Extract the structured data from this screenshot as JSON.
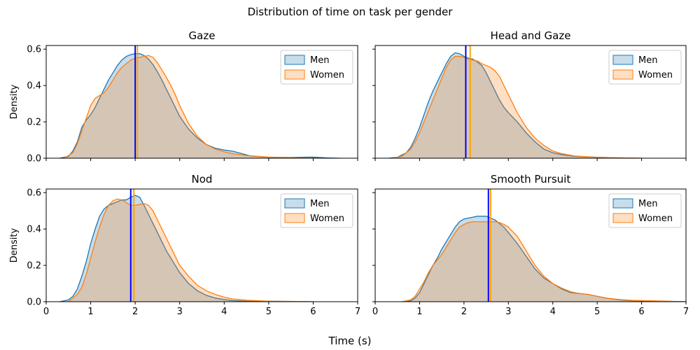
{
  "chart_data": {
    "type": "area",
    "title": "Distribution of time on task per gender",
    "xlabel": "Time (s)",
    "ylabel": "Density",
    "xlim": [
      0,
      7
    ],
    "ylim": [
      0,
      0.62
    ],
    "xticks": [
      "0",
      "1",
      "2",
      "3",
      "4",
      "5",
      "6",
      "7"
    ],
    "yticks": [
      "0.0",
      "0.2",
      "0.4",
      "0.6"
    ],
    "colors": {
      "men": "#1f77b4",
      "women": "#ff7f0e",
      "men_mean": "#0000ff",
      "women_mean": "#ffa500"
    },
    "panels": [
      {
        "title": "Gaze",
        "legend": [
          "Men",
          "Women"
        ],
        "means": {
          "men": 2.0,
          "women": 2.05
        },
        "series": [
          {
            "name": "Men",
            "x": [
              0.3,
              0.5,
              0.6,
              0.7,
              0.8,
              0.9,
              1.0,
              1.1,
              1.2,
              1.3,
              1.4,
              1.5,
              1.6,
              1.7,
              1.8,
              1.9,
              2.0,
              2.1,
              2.2,
              2.3,
              2.4,
              2.5,
              2.6,
              2.7,
              2.8,
              2.9,
              3.0,
              3.2,
              3.4,
              3.6,
              3.8,
              4.0,
              4.2,
              4.4,
              4.6,
              5.0,
              5.5,
              6.0,
              6.3,
              6.6
            ],
            "y": [
              0,
              0.01,
              0.04,
              0.09,
              0.17,
              0.21,
              0.24,
              0.28,
              0.33,
              0.38,
              0.43,
              0.47,
              0.51,
              0.54,
              0.56,
              0.57,
              0.575,
              0.575,
              0.565,
              0.545,
              0.515,
              0.475,
              0.43,
              0.38,
              0.33,
              0.28,
              0.23,
              0.16,
              0.11,
              0.075,
              0.055,
              0.045,
              0.038,
              0.025,
              0.012,
              0.005,
              0.004,
              0.006,
              0.002,
              0
            ]
          },
          {
            "name": "Women",
            "x": [
              0.4,
              0.6,
              0.7,
              0.8,
              0.9,
              1.0,
              1.1,
              1.2,
              1.3,
              1.4,
              1.5,
              1.6,
              1.7,
              1.8,
              1.9,
              2.0,
              2.1,
              2.2,
              2.3,
              2.4,
              2.5,
              2.6,
              2.7,
              2.8,
              2.9,
              3.0,
              3.2,
              3.4,
              3.6,
              3.8,
              4.0,
              4.2,
              4.5,
              5.0,
              5.5,
              6.0
            ],
            "y": [
              0,
              0.03,
              0.08,
              0.15,
              0.22,
              0.29,
              0.33,
              0.345,
              0.36,
              0.39,
              0.43,
              0.47,
              0.5,
              0.52,
              0.54,
              0.55,
              0.555,
              0.56,
              0.565,
              0.555,
              0.525,
              0.485,
              0.445,
              0.4,
              0.35,
              0.29,
              0.19,
              0.12,
              0.075,
              0.05,
              0.035,
              0.025,
              0.015,
              0.006,
              0.003,
              0
            ]
          }
        ]
      },
      {
        "title": "Head and Gaze",
        "legend": [
          "Men",
          "Women"
        ],
        "means": {
          "men": 2.04,
          "women": 2.14
        },
        "series": [
          {
            "name": "Men",
            "x": [
              0.3,
              0.5,
              0.7,
              0.8,
              0.9,
              1.0,
              1.1,
              1.2,
              1.3,
              1.4,
              1.5,
              1.6,
              1.7,
              1.8,
              1.9,
              2.0,
              2.1,
              2.2,
              2.3,
              2.4,
              2.5,
              2.6,
              2.7,
              2.8,
              2.9,
              3.0,
              3.2,
              3.4,
              3.6,
              3.8,
              4.0,
              4.2,
              4.5,
              5.0,
              5.5,
              6.0
            ],
            "y": [
              0,
              0.005,
              0.03,
              0.06,
              0.11,
              0.17,
              0.24,
              0.31,
              0.37,
              0.42,
              0.47,
              0.52,
              0.56,
              0.58,
              0.575,
              0.56,
              0.55,
              0.545,
              0.53,
              0.51,
              0.47,
              0.42,
              0.37,
              0.32,
              0.28,
              0.25,
              0.2,
              0.14,
              0.09,
              0.05,
              0.03,
              0.02,
              0.01,
              0.005,
              0.002,
              0
            ]
          },
          {
            "name": "Women",
            "x": [
              0.4,
              0.6,
              0.8,
              0.9,
              1.0,
              1.1,
              1.2,
              1.3,
              1.4,
              1.5,
              1.6,
              1.7,
              1.8,
              1.9,
              2.0,
              2.1,
              2.2,
              2.3,
              2.4,
              2.5,
              2.6,
              2.7,
              2.8,
              2.9,
              3.0,
              3.1,
              3.2,
              3.4,
              3.6,
              3.8,
              4.0,
              4.2,
              4.5,
              5.0,
              5.5,
              6.0
            ],
            "y": [
              0,
              0.01,
              0.05,
              0.09,
              0.14,
              0.2,
              0.26,
              0.32,
              0.38,
              0.44,
              0.5,
              0.54,
              0.56,
              0.56,
              0.555,
              0.545,
              0.54,
              0.535,
              0.52,
              0.51,
              0.5,
              0.48,
              0.45,
              0.4,
              0.35,
              0.3,
              0.25,
              0.17,
              0.11,
              0.07,
              0.04,
              0.025,
              0.012,
              0.005,
              0.002,
              0
            ]
          }
        ]
      },
      {
        "title": "Nod",
        "legend": [
          "Men",
          "Women"
        ],
        "means": {
          "men": 1.9,
          "women": 1.97
        },
        "series": [
          {
            "name": "Men",
            "x": [
              0.3,
              0.5,
              0.6,
              0.7,
              0.8,
              0.9,
              1.0,
              1.1,
              1.2,
              1.3,
              1.4,
              1.5,
              1.6,
              1.7,
              1.8,
              1.9,
              2.0,
              2.1,
              2.2,
              2.3,
              2.4,
              2.5,
              2.6,
              2.7,
              2.8,
              2.9,
              3.0,
              3.2,
              3.4,
              3.6,
              3.8,
              4.0,
              4.2,
              4.5,
              5.0,
              5.5,
              6.0
            ],
            "y": [
              0,
              0.01,
              0.03,
              0.07,
              0.14,
              0.22,
              0.32,
              0.4,
              0.47,
              0.51,
              0.53,
              0.54,
              0.55,
              0.56,
              0.56,
              0.575,
              0.585,
              0.575,
              0.53,
              0.48,
              0.43,
              0.38,
              0.33,
              0.28,
              0.24,
              0.2,
              0.16,
              0.1,
              0.06,
              0.035,
              0.02,
              0.012,
              0.006,
              0.003,
              0.003,
              0.001,
              0
            ]
          },
          {
            "name": "Women",
            "x": [
              0.5,
              0.7,
              0.8,
              0.9,
              1.0,
              1.1,
              1.2,
              1.3,
              1.4,
              1.5,
              1.6,
              1.7,
              1.8,
              1.9,
              2.0,
              2.1,
              2.2,
              2.3,
              2.4,
              2.5,
              2.6,
              2.7,
              2.8,
              2.9,
              3.0,
              3.2,
              3.4,
              3.6,
              3.8,
              4.0,
              4.2,
              4.5,
              5.0,
              5.5,
              6.0
            ],
            "y": [
              0,
              0.04,
              0.08,
              0.15,
              0.24,
              0.33,
              0.41,
              0.48,
              0.53,
              0.555,
              0.565,
              0.56,
              0.545,
              0.53,
              0.53,
              0.535,
              0.54,
              0.53,
              0.5,
              0.45,
              0.4,
              0.35,
              0.3,
              0.25,
              0.2,
              0.14,
              0.09,
              0.06,
              0.04,
              0.025,
              0.015,
              0.008,
              0.003,
              0.002,
              0
            ]
          }
        ]
      },
      {
        "title": "Smooth Pursuit",
        "legend": [
          "Men",
          "Women"
        ],
        "means": {
          "men": 2.55,
          "women": 2.6
        },
        "series": [
          {
            "name": "Men",
            "x": [
              0.6,
              0.8,
              0.9,
              1.0,
              1.1,
              1.2,
              1.3,
              1.4,
              1.5,
              1.6,
              1.7,
              1.8,
              1.9,
              2.0,
              2.1,
              2.2,
              2.3,
              2.4,
              2.5,
              2.6,
              2.7,
              2.8,
              2.9,
              3.0,
              3.2,
              3.4,
              3.6,
              3.8,
              4.0,
              4.2,
              4.4,
              4.6,
              4.8,
              5.0,
              5.2,
              5.5,
              5.8,
              6.2,
              6.6,
              7.0
            ],
            "y": [
              0,
              0.005,
              0.02,
              0.05,
              0.1,
              0.15,
              0.2,
              0.24,
              0.29,
              0.33,
              0.37,
              0.41,
              0.44,
              0.455,
              0.46,
              0.465,
              0.47,
              0.47,
              0.47,
              0.46,
              0.45,
              0.43,
              0.41,
              0.38,
              0.32,
              0.25,
              0.18,
              0.13,
              0.1,
              0.07,
              0.05,
              0.045,
              0.04,
              0.03,
              0.02,
              0.01,
              0.005,
              0.004,
              0.002,
              0
            ]
          },
          {
            "name": "Women",
            "x": [
              0.6,
              0.8,
              0.9,
              1.0,
              1.1,
              1.2,
              1.3,
              1.4,
              1.5,
              1.6,
              1.7,
              1.8,
              1.9,
              2.0,
              2.1,
              2.2,
              2.3,
              2.4,
              2.5,
              2.6,
              2.7,
              2.8,
              2.9,
              3.0,
              3.2,
              3.4,
              3.6,
              3.8,
              4.0,
              4.2,
              4.4,
              4.6,
              4.8,
              5.0,
              5.2,
              5.5,
              5.8,
              6.2,
              6.6,
              7.0
            ],
            "y": [
              0,
              0.01,
              0.03,
              0.07,
              0.11,
              0.16,
              0.2,
              0.23,
              0.26,
              0.3,
              0.34,
              0.38,
              0.41,
              0.425,
              0.435,
              0.44,
              0.44,
              0.44,
              0.44,
              0.44,
              0.44,
              0.435,
              0.425,
              0.41,
              0.36,
              0.28,
              0.2,
              0.14,
              0.1,
              0.075,
              0.055,
              0.045,
              0.04,
              0.03,
              0.02,
              0.012,
              0.007,
              0.005,
              0.003,
              0
            ]
          }
        ]
      }
    ]
  }
}
